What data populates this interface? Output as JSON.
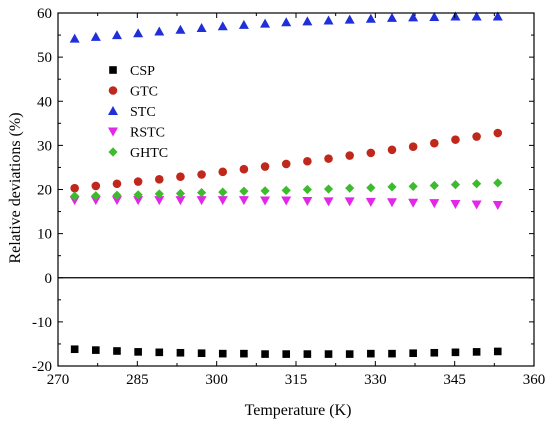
{
  "chart_data": {
    "type": "scatter",
    "xlabel": "Temperature (K)",
    "ylabel": "Relative deviations (%)",
    "xlim": [
      270,
      360
    ],
    "ylim": [
      -20,
      60
    ],
    "xticks": [
      270,
      285,
      300,
      315,
      330,
      345,
      360
    ],
    "xtick_labels": [
      "270",
      "285",
      "300",
      "315",
      "330",
      "345",
      "360"
    ],
    "yticks": [
      -20,
      -10,
      0,
      10,
      20,
      30,
      40,
      50,
      60
    ],
    "ytick_labels": [
      "-20",
      "-10",
      "0",
      "10",
      "20",
      "30",
      "40",
      "50",
      "60"
    ],
    "grid": false,
    "zero_line": true,
    "legend_position": "top-left",
    "x": [
      273.15,
      277.15,
      281.15,
      285.15,
      289.15,
      293.15,
      297.15,
      301.15,
      305.15,
      309.15,
      313.15,
      317.15,
      321.15,
      325.15,
      329.15,
      333.15,
      337.15,
      341.15,
      345.15,
      349.15,
      353.15
    ],
    "series": [
      {
        "name": "CSP",
        "marker": "square",
        "color": "#000000",
        "values": [
          -16.2,
          -16.4,
          -16.6,
          -16.8,
          -16.9,
          -17.0,
          -17.1,
          -17.2,
          -17.2,
          -17.3,
          -17.3,
          -17.3,
          -17.3,
          -17.3,
          -17.2,
          -17.2,
          -17.1,
          -17.0,
          -16.9,
          -16.8,
          -16.7
        ]
      },
      {
        "name": "GTC",
        "marker": "circle",
        "color": "#c0281c",
        "values": [
          20.3,
          20.8,
          21.3,
          21.8,
          22.3,
          22.9,
          23.4,
          24.0,
          24.6,
          25.2,
          25.8,
          26.4,
          27.0,
          27.7,
          28.3,
          29.0,
          29.7,
          30.5,
          31.3,
          32.0,
          32.8
        ]
      },
      {
        "name": "STC",
        "marker": "triangle-up",
        "color": "#1f2fd9",
        "values": [
          54.2,
          54.6,
          55.0,
          55.4,
          55.8,
          56.2,
          56.6,
          57.0,
          57.3,
          57.6,
          57.9,
          58.1,
          58.3,
          58.5,
          58.7,
          58.9,
          59.0,
          59.1,
          59.2,
          59.2,
          59.2
        ]
      },
      {
        "name": "RSTC",
        "marker": "triangle-down",
        "color": "#e327e8",
        "values": [
          17.6,
          17.6,
          17.6,
          17.6,
          17.6,
          17.6,
          17.6,
          17.6,
          17.6,
          17.5,
          17.5,
          17.4,
          17.3,
          17.3,
          17.2,
          17.1,
          17.0,
          16.9,
          16.7,
          16.6,
          16.5
        ]
      },
      {
        "name": "GHTC",
        "marker": "diamond",
        "color": "#3cbc2c",
        "values": [
          18.5,
          18.6,
          18.7,
          18.8,
          19.0,
          19.1,
          19.3,
          19.4,
          19.6,
          19.7,
          19.8,
          20.0,
          20.1,
          20.3,
          20.4,
          20.6,
          20.7,
          20.9,
          21.1,
          21.3,
          21.5
        ]
      }
    ]
  }
}
